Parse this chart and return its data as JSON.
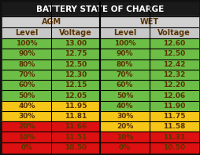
{
  "title": "BATTERY STATE OF CHARGE",
  "col_headers": [
    "Level",
    "Voltage",
    "Level",
    "Voltage"
  ],
  "group_headers": [
    "AGM",
    "WET"
  ],
  "rows": [
    [
      "100%",
      "13.00",
      "100%",
      "12.60"
    ],
    [
      "90%",
      "12.75",
      "90%",
      "12.50"
    ],
    [
      "80%",
      "12.50",
      "80%",
      "12.42"
    ],
    [
      "70%",
      "12.30",
      "70%",
      "12.32"
    ],
    [
      "60%",
      "12.15",
      "60%",
      "12.20"
    ],
    [
      "50%",
      "12.05",
      "50%",
      "12.06"
    ],
    [
      "40%",
      "11.95",
      "40%",
      "11.90"
    ],
    [
      "30%",
      "11.81",
      "30%",
      "11.75"
    ],
    [
      "20%",
      "11.66",
      "20%",
      "11.58"
    ],
    [
      "10%",
      "11.51",
      "10%",
      "11.31"
    ],
    [
      "0%",
      "10.50",
      "0%",
      "10.50"
    ]
  ],
  "agm_row_colors": [
    "#6cbe47",
    "#6cbe47",
    "#6cbe47",
    "#6cbe47",
    "#6cbe47",
    "#6cbe47",
    "#f5c518",
    "#f5c518",
    "#dd1111",
    "#dd1111",
    "#dd1111"
  ],
  "wet_row_colors": [
    "#6cbe47",
    "#6cbe47",
    "#6cbe47",
    "#6cbe47",
    "#6cbe47",
    "#6cbe47",
    "#6cbe47",
    "#f5c518",
    "#f5c518",
    "#dd1111",
    "#dd1111"
  ],
  "bg_color": "#111111",
  "title_bg": "#1a1a1a",
  "header_bg": "#d0d0d0",
  "col_header_bg": "#c8c8c8",
  "title_color": "#ffffff",
  "header_color": "#5a3300",
  "data_color": "#5a3300",
  "grid_color": "#000000",
  "title_fontsize": 7.5,
  "header_fontsize": 7,
  "data_fontsize": 6.5,
  "grid_lw": 0.8
}
